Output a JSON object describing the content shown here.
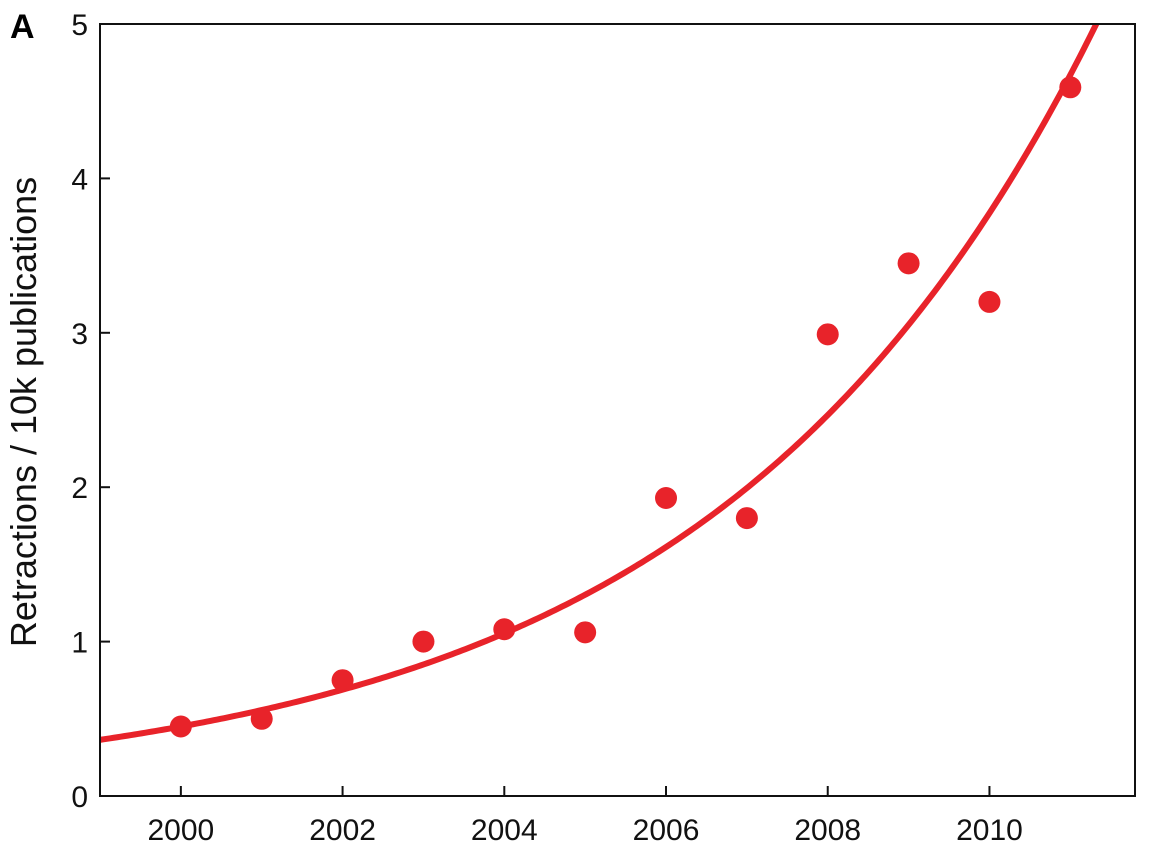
{
  "chart_data": {
    "type": "scatter",
    "panel_label": "A",
    "title": "",
    "xlabel": "",
    "ylabel": "Retractions / 10k publications",
    "xlim": [
      1999,
      2011.8
    ],
    "ylim": [
      0,
      5
    ],
    "x_ticks": [
      2000,
      2002,
      2004,
      2006,
      2008,
      2010
    ],
    "y_ticks": [
      0,
      1,
      2,
      3,
      4,
      5
    ],
    "grid": false,
    "color": "#e8232a",
    "series": [
      {
        "points": [
          {
            "x": 2000,
            "y": 0.45
          },
          {
            "x": 2001,
            "y": 0.5
          },
          {
            "x": 2002,
            "y": 0.75
          },
          {
            "x": 2003,
            "y": 1.0
          },
          {
            "x": 2004,
            "y": 1.08
          },
          {
            "x": 2005,
            "y": 1.06
          },
          {
            "x": 2006,
            "y": 1.93
          },
          {
            "x": 2007,
            "y": 1.8
          },
          {
            "x": 2008,
            "y": 2.99
          },
          {
            "x": 2009,
            "y": 3.45
          },
          {
            "x": 2010,
            "y": 3.2
          },
          {
            "x": 2011,
            "y": 4.59
          }
        ]
      }
    ],
    "fit": {
      "type": "exponential",
      "a": 0.45,
      "b": 0.2127,
      "x0": 2000
    }
  }
}
